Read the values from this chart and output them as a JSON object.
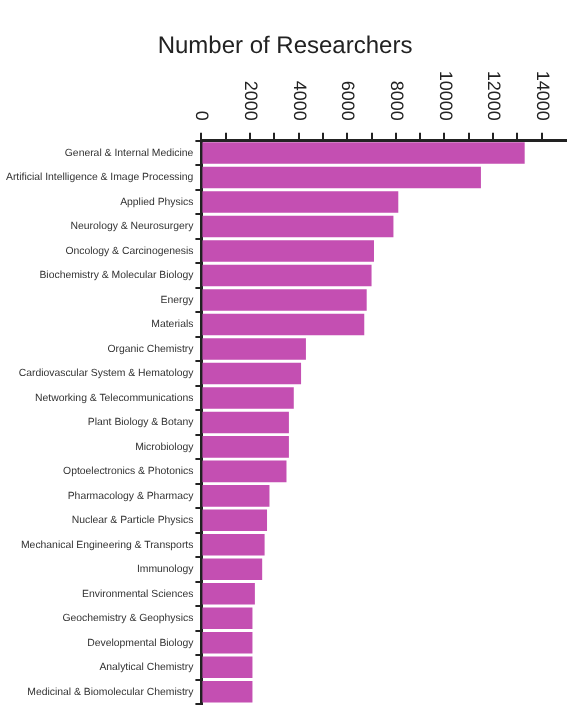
{
  "chart_data": {
    "type": "bar",
    "orientation": "horizontal",
    "title": "Number of Researchers",
    "categories": [
      "General & Internal Medicine",
      "Artificial Intelligence & Image Processing",
      "Applied Physics",
      "Neurology & Neurosurgery",
      "Oncology & Carcinogenesis",
      "Biochemistry & Molecular Biology",
      "Energy",
      "Materials",
      "Organic Chemistry",
      "Cardiovascular System & Hematology",
      "Networking & Telecommunications",
      "Plant Biology & Botany",
      "Microbiology",
      "Optoelectronics & Photonics",
      "Pharmacology & Pharmacy",
      "Nuclear & Particle Physics",
      "Mechanical Engineering & Transports",
      "Immunology",
      "Environmental Sciences",
      "Geochemistry & Geophysics",
      "Developmental Biology",
      "Analytical Chemistry",
      "Medicinal & Biomolecular Chemistry"
    ],
    "values": [
      13300,
      11500,
      8100,
      7900,
      7100,
      7000,
      6800,
      6700,
      4300,
      4100,
      3800,
      3600,
      3600,
      3500,
      2800,
      2700,
      2600,
      2500,
      2200,
      2100,
      2100,
      2100,
      2100
    ],
    "color": "#c44fb2",
    "xlim": [
      0,
      15000
    ],
    "xticks": [
      0,
      {
        "value": 1000,
        "label": null
      },
      2000,
      {
        "value": 3000,
        "label": null
      },
      4000,
      {
        "value": 5000,
        "label": null
      },
      6000,
      {
        "value": 7000,
        "label": null
      },
      8000,
      {
        "value": 9000,
        "label": null
      },
      10000,
      {
        "value": 11000,
        "label": null
      },
      12000,
      {
        "value": 13000,
        "label": null
      },
      14000
    ],
    "grid": false,
    "legend": false
  }
}
